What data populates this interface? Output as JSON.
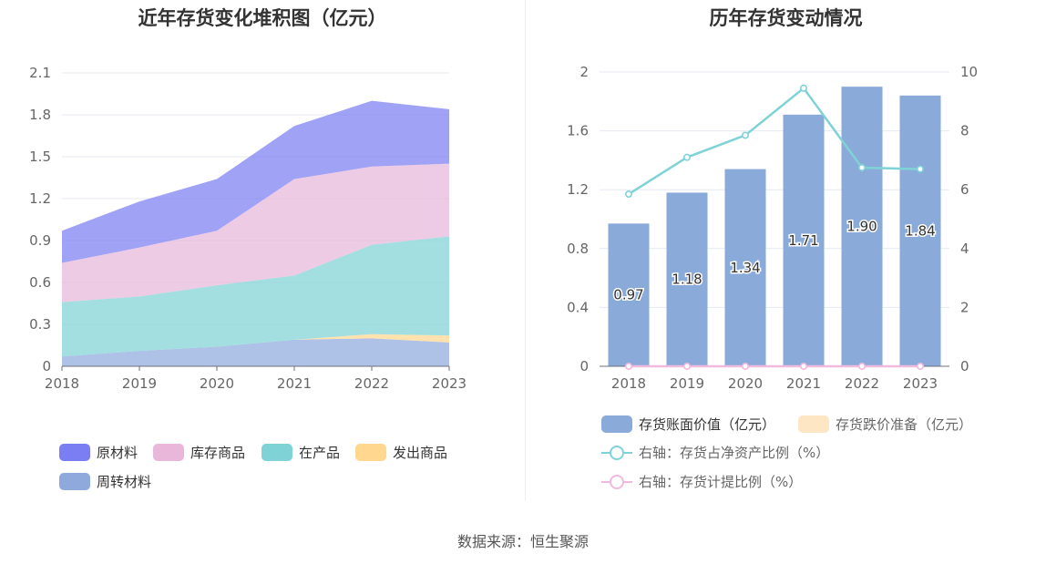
{
  "source": "数据来源：恒生聚源",
  "chart_data": [
    {
      "type": "area",
      "stacked": true,
      "title": "近年存货变化堆积图（亿元）",
      "x": [
        "2018",
        "2019",
        "2020",
        "2021",
        "2022",
        "2023"
      ],
      "ylim": [
        0,
        2.1
      ],
      "yticks": [
        "0",
        "0.3",
        "0.6",
        "0.9",
        "1.2",
        "1.5",
        "1.8",
        "2.1"
      ],
      "grid": true,
      "legend_position": "bottom",
      "series": [
        {
          "name": "周转材料",
          "color": "#8fa9dc",
          "values": [
            0.07,
            0.11,
            0.14,
            0.19,
            0.2,
            0.17
          ]
        },
        {
          "name": "发出商品",
          "color": "#ffd78e",
          "values": [
            0,
            0,
            0,
            0,
            0.03,
            0.05
          ]
        },
        {
          "name": "在产品",
          "color": "#7fd3d6",
          "values": [
            0.39,
            0.39,
            0.44,
            0.46,
            0.64,
            0.71
          ]
        },
        {
          "name": "库存商品",
          "color": "#e8b7d9",
          "values": [
            0.28,
            0.35,
            0.39,
            0.69,
            0.56,
            0.52
          ]
        },
        {
          "name": "原材料",
          "color": "#7b7ef2",
          "values": [
            0.23,
            0.33,
            0.37,
            0.38,
            0.47,
            0.39
          ]
        }
      ]
    },
    {
      "type": "bar",
      "title": "历年存货变动情况",
      "x": [
        "2018",
        "2019",
        "2020",
        "2021",
        "2022",
        "2023"
      ],
      "ylim": [
        0,
        2
      ],
      "yticks": [
        "0",
        "0.4",
        "0.8",
        "1.2",
        "1.6",
        "2"
      ],
      "y2lim": [
        0,
        10
      ],
      "y2ticks": [
        "0",
        "2",
        "4",
        "6",
        "8",
        "10"
      ],
      "grid": true,
      "legend_position": "bottom",
      "series": [
        {
          "name": "存货账面价值（亿元）",
          "type": "bar",
          "axis": "left",
          "color": "#8aaad9",
          "values": [
            0.97,
            1.18,
            1.34,
            1.71,
            1.9,
            1.84
          ],
          "labels": [
            "0.97",
            "1.18",
            "1.34",
            "1.71",
            "1.90",
            "1.84"
          ]
        },
        {
          "name": "存货跌价准备（亿元）",
          "type": "bar",
          "axis": "left",
          "color": "#fde6c4",
          "values": [
            0,
            0,
            0,
            0,
            0,
            0
          ]
        },
        {
          "name": "右轴：存货占净资产比例（%）",
          "type": "line",
          "axis": "right",
          "color": "#7fd3d6",
          "values": [
            5.85,
            7.1,
            7.85,
            9.45,
            6.75,
            6.7
          ]
        },
        {
          "name": "右轴：存货计提比例（%）",
          "type": "line",
          "axis": "right",
          "color": "#f0b9de",
          "values": [
            0,
            0,
            0,
            0,
            0,
            0
          ]
        }
      ]
    }
  ]
}
